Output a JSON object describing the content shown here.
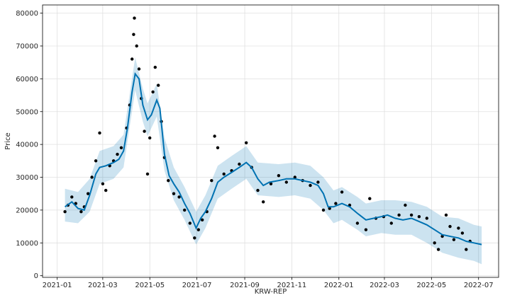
{
  "chart_data": {
    "type": "line",
    "title": "",
    "xlabel": "KRW-REP",
    "ylabel": "Price",
    "x_tick_labels": [
      "2021-01",
      "2021-03",
      "2021-05",
      "2021-07",
      "2021-09",
      "2021-11",
      "2022-01",
      "2022-03",
      "2022-05",
      "2022-07"
    ],
    "x_tick_dates": [
      "2021-01-01",
      "2021-03-01",
      "2021-05-01",
      "2021-07-01",
      "2021-09-01",
      "2021-11-01",
      "2022-01-01",
      "2022-03-01",
      "2022-05-01",
      "2022-07-01"
    ],
    "y_tick_labels": [
      "0",
      "10000",
      "20000",
      "30000",
      "40000",
      "50000",
      "60000",
      "70000",
      "80000"
    ],
    "y_tick_values": [
      0,
      10000,
      20000,
      30000,
      40000,
      50000,
      60000,
      70000,
      80000
    ],
    "xlim": [
      "2020-12-13",
      "2022-07-27"
    ],
    "ylim": [
      -500,
      82500
    ],
    "grid": true,
    "legend": "none",
    "colors": {
      "forecast_line": "#0072B2",
      "uncertainty_band": "#0072B2",
      "observations": "#000000",
      "grid": "#e0e0e0"
    },
    "series": [
      {
        "kind": "forecast",
        "points": [
          [
            "2021-01-11",
            21000
          ],
          [
            "2021-01-20",
            22500
          ],
          [
            "2021-01-28",
            20500
          ],
          [
            "2021-02-05",
            20000
          ],
          [
            "2021-02-12",
            24500
          ],
          [
            "2021-02-20",
            31000
          ],
          [
            "2021-02-25",
            33000
          ],
          [
            "2021-03-05",
            33500
          ],
          [
            "2021-03-15",
            34500
          ],
          [
            "2021-03-22",
            35500
          ],
          [
            "2021-03-28",
            38000
          ],
          [
            "2021-04-02",
            45000
          ],
          [
            "2021-04-08",
            56000
          ],
          [
            "2021-04-12",
            61500
          ],
          [
            "2021-04-17",
            60000
          ],
          [
            "2021-04-22",
            52000
          ],
          [
            "2021-04-28",
            47500
          ],
          [
            "2021-05-03",
            49000
          ],
          [
            "2021-05-10",
            53500
          ],
          [
            "2021-05-14",
            51000
          ],
          [
            "2021-05-20",
            37000
          ],
          [
            "2021-05-26",
            30500
          ],
          [
            "2021-06-01",
            28000
          ],
          [
            "2021-06-08",
            25500
          ],
          [
            "2021-06-15",
            22000
          ],
          [
            "2021-06-22",
            19000
          ],
          [
            "2021-06-30",
            14500
          ],
          [
            "2021-07-06",
            17500
          ],
          [
            "2021-07-12",
            19500
          ],
          [
            "2021-07-20",
            23500
          ],
          [
            "2021-07-28",
            28500
          ],
          [
            "2021-08-05",
            30000
          ],
          [
            "2021-08-15",
            31500
          ],
          [
            "2021-08-25",
            33000
          ],
          [
            "2021-09-03",
            34500
          ],
          [
            "2021-09-10",
            33000
          ],
          [
            "2021-09-18",
            29500
          ],
          [
            "2021-09-25",
            27500
          ],
          [
            "2021-10-03",
            28500
          ],
          [
            "2021-10-15",
            29000
          ],
          [
            "2021-10-25",
            29500
          ],
          [
            "2021-11-05",
            29500
          ],
          [
            "2021-11-15",
            29000
          ],
          [
            "2021-11-25",
            28500
          ],
          [
            "2021-12-05",
            27500
          ],
          [
            "2021-12-12",
            25000
          ],
          [
            "2021-12-18",
            21000
          ],
          [
            "2021-12-25",
            21000
          ],
          [
            "2022-01-05",
            22000
          ],
          [
            "2022-01-15",
            21000
          ],
          [
            "2022-01-25",
            19000
          ],
          [
            "2022-02-05",
            17000
          ],
          [
            "2022-02-15",
            17500
          ],
          [
            "2022-02-25",
            18000
          ],
          [
            "2022-03-05",
            18500
          ],
          [
            "2022-03-15",
            17500
          ],
          [
            "2022-03-25",
            17000
          ],
          [
            "2022-04-05",
            17500
          ],
          [
            "2022-04-15",
            16500
          ],
          [
            "2022-04-25",
            15500
          ],
          [
            "2022-05-05",
            14000
          ],
          [
            "2022-05-15",
            12500
          ],
          [
            "2022-05-25",
            12000
          ],
          [
            "2022-06-05",
            11500
          ],
          [
            "2022-06-15",
            10500
          ],
          [
            "2022-06-25",
            10000
          ],
          [
            "2022-07-05",
            9500
          ]
        ]
      },
      {
        "kind": "observations",
        "style": "scatter",
        "points": [
          [
            "2021-01-11",
            19500
          ],
          [
            "2021-01-15",
            21500
          ],
          [
            "2021-01-20",
            24000
          ],
          [
            "2021-01-25",
            22000
          ],
          [
            "2021-02-01",
            19500
          ],
          [
            "2021-02-05",
            21000
          ],
          [
            "2021-02-10",
            25000
          ],
          [
            "2021-02-15",
            30000
          ],
          [
            "2021-02-20",
            35000
          ],
          [
            "2021-02-25",
            43500
          ],
          [
            "2021-03-01",
            28000
          ],
          [
            "2021-03-05",
            26000
          ],
          [
            "2021-03-10",
            33500
          ],
          [
            "2021-03-15",
            35000
          ],
          [
            "2021-03-20",
            37000
          ],
          [
            "2021-03-25",
            39000
          ],
          [
            "2021-04-01",
            45000
          ],
          [
            "2021-04-05",
            52000
          ],
          [
            "2021-04-08",
            66000
          ],
          [
            "2021-04-10",
            73500
          ],
          [
            "2021-04-11",
            78500
          ],
          [
            "2021-04-14",
            70000
          ],
          [
            "2021-04-17",
            63000
          ],
          [
            "2021-04-20",
            54000
          ],
          [
            "2021-04-24",
            44000
          ],
          [
            "2021-04-28",
            31000
          ],
          [
            "2021-05-01",
            42000
          ],
          [
            "2021-05-05",
            56000
          ],
          [
            "2021-05-08",
            63500
          ],
          [
            "2021-05-12",
            58000
          ],
          [
            "2021-05-16",
            47000
          ],
          [
            "2021-05-20",
            36000
          ],
          [
            "2021-05-25",
            29000
          ],
          [
            "2021-06-01",
            25000
          ],
          [
            "2021-06-08",
            24000
          ],
          [
            "2021-06-15",
            20000
          ],
          [
            "2021-06-22",
            16000
          ],
          [
            "2021-06-28",
            11500
          ],
          [
            "2021-07-03",
            14000
          ],
          [
            "2021-07-08",
            17000
          ],
          [
            "2021-07-14",
            19500
          ],
          [
            "2021-07-20",
            29000
          ],
          [
            "2021-07-24",
            42500
          ],
          [
            "2021-07-28",
            39000
          ],
          [
            "2021-08-05",
            31000
          ],
          [
            "2021-08-15",
            32000
          ],
          [
            "2021-08-25",
            34000
          ],
          [
            "2021-09-03",
            40500
          ],
          [
            "2021-09-10",
            33000
          ],
          [
            "2021-09-18",
            26000
          ],
          [
            "2021-09-25",
            22500
          ],
          [
            "2021-10-05",
            28000
          ],
          [
            "2021-10-15",
            30500
          ],
          [
            "2021-10-25",
            28500
          ],
          [
            "2021-11-05",
            30000
          ],
          [
            "2021-11-15",
            29000
          ],
          [
            "2021-11-25",
            27500
          ],
          [
            "2021-12-05",
            28500
          ],
          [
            "2021-12-12",
            20000
          ],
          [
            "2021-12-20",
            20500
          ],
          [
            "2021-12-28",
            22000
          ],
          [
            "2022-01-05",
            25500
          ],
          [
            "2022-01-15",
            21500
          ],
          [
            "2022-01-25",
            16000
          ],
          [
            "2022-02-05",
            14000
          ],
          [
            "2022-02-10",
            23500
          ],
          [
            "2022-02-18",
            17500
          ],
          [
            "2022-02-28",
            18000
          ],
          [
            "2022-03-10",
            16000
          ],
          [
            "2022-03-20",
            18500
          ],
          [
            "2022-03-28",
            21500
          ],
          [
            "2022-04-05",
            18500
          ],
          [
            "2022-04-15",
            18000
          ],
          [
            "2022-04-25",
            17500
          ],
          [
            "2022-05-05",
            10000
          ],
          [
            "2022-05-10",
            8000
          ],
          [
            "2022-05-15",
            12000
          ],
          [
            "2022-05-20",
            18500
          ],
          [
            "2022-05-25",
            15000
          ],
          [
            "2022-05-30",
            11000
          ],
          [
            "2022-06-05",
            14500
          ],
          [
            "2022-06-10",
            13000
          ],
          [
            "2022-06-15",
            8000
          ],
          [
            "2022-06-20",
            10500
          ]
        ]
      }
    ],
    "band": [
      [
        "2021-01-11",
        16500,
        26500
      ],
      [
        "2021-01-28",
        16000,
        25500
      ],
      [
        "2021-02-12",
        19500,
        29500
      ],
      [
        "2021-02-25",
        28000,
        38000
      ],
      [
        "2021-03-15",
        29500,
        39500
      ],
      [
        "2021-03-28",
        33000,
        43000
      ],
      [
        "2021-04-12",
        56500,
        66500
      ],
      [
        "2021-04-22",
        47000,
        57000
      ],
      [
        "2021-04-28",
        42500,
        52500
      ],
      [
        "2021-05-10",
        48500,
        58500
      ],
      [
        "2021-05-20",
        32000,
        42000
      ],
      [
        "2021-06-01",
        23000,
        33000
      ],
      [
        "2021-06-15",
        17000,
        27000
      ],
      [
        "2021-06-30",
        9500,
        19500
      ],
      [
        "2021-07-12",
        14500,
        24500
      ],
      [
        "2021-07-28",
        23500,
        33500
      ],
      [
        "2021-08-15",
        26500,
        36500
      ],
      [
        "2021-09-03",
        29500,
        39500
      ],
      [
        "2021-09-18",
        24500,
        34500
      ],
      [
        "2021-10-15",
        24000,
        34000
      ],
      [
        "2021-11-05",
        24500,
        34500
      ],
      [
        "2021-11-25",
        23500,
        33500
      ],
      [
        "2021-12-12",
        20000,
        30000
      ],
      [
        "2021-12-25",
        16000,
        26000
      ],
      [
        "2022-01-05",
        17000,
        27000
      ],
      [
        "2022-01-25",
        14000,
        24000
      ],
      [
        "2022-02-05",
        12000,
        22000
      ],
      [
        "2022-02-25",
        13000,
        23000
      ],
      [
        "2022-03-15",
        12500,
        23000
      ],
      [
        "2022-04-05",
        12500,
        22500
      ],
      [
        "2022-04-25",
        10000,
        21000
      ],
      [
        "2022-05-15",
        7000,
        18000
      ],
      [
        "2022-06-05",
        5500,
        17500
      ],
      [
        "2022-06-25",
        4500,
        15500
      ],
      [
        "2022-07-05",
        3500,
        15000
      ]
    ]
  }
}
